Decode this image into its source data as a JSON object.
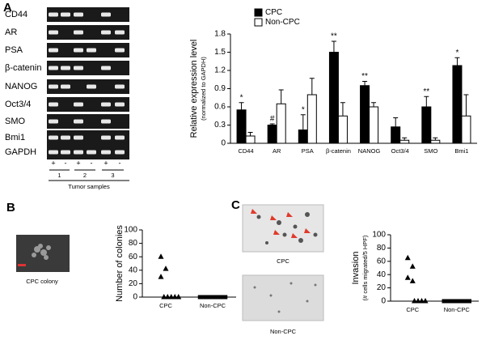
{
  "panel_labels": [
    "A",
    "B",
    "C"
  ],
  "gel": {
    "genes": [
      "CD44",
      "AR",
      "PSA",
      "β-catenin",
      "NANOG",
      "Oct3/4",
      "SMO",
      "Bmi1",
      "GAPDH"
    ],
    "lane_signs": [
      "+",
      "-",
      "+",
      "-",
      "+",
      "-"
    ],
    "samples": [
      "1",
      "2",
      "3"
    ],
    "caption": "Tumor samples"
  },
  "images": {
    "colony": "CPC colony",
    "invasion_top": "CPC",
    "invasion_bottom": "Non-CPC"
  },
  "chart_data": [
    {
      "type": "bar",
      "ylabel": "Relative expression level",
      "ylabel_sub": "(normalized to GAPDH)",
      "categories": [
        "CD44",
        "AR",
        "PSA",
        "β-catenin",
        "NANOG",
        "Oct3/4",
        "SMO",
        "Bmi1"
      ],
      "series": [
        {
          "name": "CPC",
          "color": "#000000",
          "values": [
            0.55,
            0.3,
            0.22,
            1.5,
            0.95,
            0.27,
            0.6,
            1.28
          ],
          "errors": [
            0.12,
            0.02,
            0.25,
            0.18,
            0.07,
            0.15,
            0.17,
            0.13
          ]
        },
        {
          "name": "Non-CPC",
          "color": "#ffffff",
          "values": [
            0.12,
            0.65,
            0.8,
            0.45,
            0.6,
            0.05,
            0.05,
            0.45
          ],
          "errors": [
            0.06,
            0.23,
            0.27,
            0.22,
            0.07,
            0.04,
            0.04,
            0.35
          ]
        }
      ],
      "annotations": [
        "*",
        "#",
        "*",
        "**",
        "**",
        null,
        "**",
        "*"
      ],
      "ylim": [
        0,
        1.8
      ],
      "yticks": [
        0,
        0.3,
        0.6,
        0.9,
        1.2,
        1.5,
        1.8
      ]
    },
    {
      "type": "dot",
      "ylabel": "Number of colonies",
      "categories": [
        "CPC",
        "Non-CPC"
      ],
      "markers": [
        "triangle",
        "square"
      ],
      "values": [
        [
          60,
          42,
          30,
          0,
          0,
          0,
          0,
          0
        ],
        [
          0,
          0,
          0,
          0,
          0,
          0,
          0,
          0
        ]
      ],
      "ylim": [
        0,
        100
      ],
      "yticks": [
        0,
        20,
        40,
        60,
        80,
        100
      ]
    },
    {
      "type": "dot",
      "ylabel": "Invasion",
      "ylabel_sub": "(# cells migrated/5 HPF)",
      "categories": [
        "CPC",
        "Non-CPC"
      ],
      "markers": [
        "triangle",
        "square"
      ],
      "values": [
        [
          65,
          52,
          35,
          30,
          0,
          0,
          0,
          0
        ],
        [
          0,
          0,
          0,
          0,
          0,
          0,
          0,
          0
        ]
      ],
      "ylim": [
        0,
        100
      ],
      "yticks": [
        0,
        20,
        40,
        60,
        80,
        100
      ]
    }
  ]
}
